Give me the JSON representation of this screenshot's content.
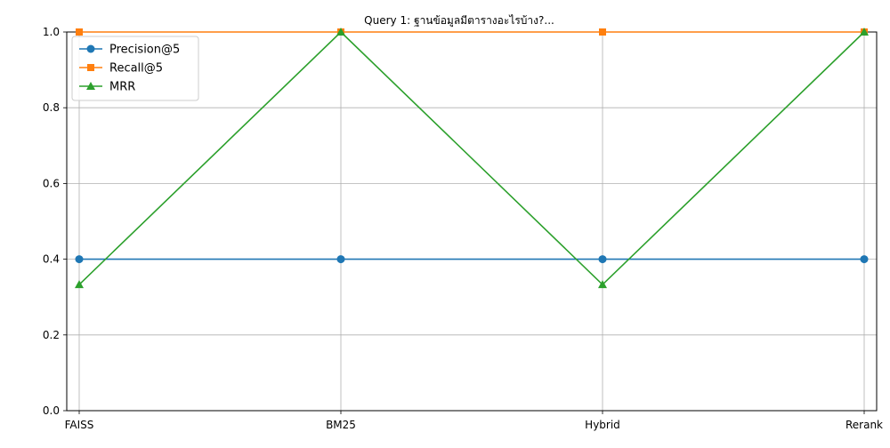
{
  "chart_data": {
    "type": "line",
    "title": "Query 1: ฐานข้อมูลมีตารางอะไรบ้าง?...",
    "xlabel": "",
    "ylabel": "",
    "categories": [
      "FAISS",
      "BM25",
      "Hybrid",
      "Rerank"
    ],
    "ylim": [
      0,
      1.0
    ],
    "yticks": [
      "0.0",
      "0.2",
      "0.4",
      "0.6",
      "0.8",
      "1.0"
    ],
    "grid": true,
    "legend_position": "top-left",
    "series": [
      {
        "name": "Precision@5",
        "values": [
          0.4,
          0.4,
          0.4,
          0.4
        ],
        "color": "#1f77b4",
        "marker": "circle"
      },
      {
        "name": "Recall@5",
        "values": [
          1.0,
          1.0,
          1.0,
          1.0
        ],
        "color": "#ff7f0e",
        "marker": "square"
      },
      {
        "name": "MRR",
        "values": [
          0.333,
          1.0,
          0.333,
          1.0
        ],
        "color": "#2ca02c",
        "marker": "triangle"
      }
    ]
  }
}
